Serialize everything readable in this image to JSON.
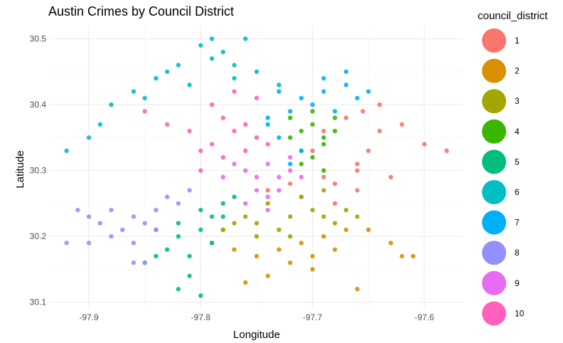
{
  "chart_data": {
    "type": "scatter",
    "title": "Austin Crimes by Council District",
    "xlabel": "Longitude",
    "ylabel": "Latitude",
    "xlim": [
      -97.935,
      -97.565
    ],
    "ylim": [
      30.09,
      30.52
    ],
    "x_ticks": [
      -97.9,
      -97.8,
      -97.7,
      -97.6
    ],
    "x_tick_labels": [
      "-97.9",
      "-97.8",
      "-97.7",
      "-97.6"
    ],
    "y_ticks": [
      30.1,
      30.2,
      30.3,
      30.4,
      30.5
    ],
    "y_tick_labels": [
      "30.1",
      "30.2",
      "30.3",
      "30.4",
      "30.5"
    ],
    "grid": true,
    "legend": {
      "title": "council_district",
      "position": "right",
      "entries": [
        {
          "label": "1",
          "color": "#F8766D"
        },
        {
          "label": "2",
          "color": "#D89000"
        },
        {
          "label": "3",
          "color": "#A3A500"
        },
        {
          "label": "4",
          "color": "#39B600"
        },
        {
          "label": "5",
          "color": "#00BF7D"
        },
        {
          "label": "6",
          "color": "#00BFC4"
        },
        {
          "label": "7",
          "color": "#00B0F6"
        },
        {
          "label": "8",
          "color": "#9590FF"
        },
        {
          "label": "9",
          "color": "#E76BF3"
        },
        {
          "label": "10",
          "color": "#FF62BC"
        }
      ]
    },
    "series": [
      {
        "district": "1",
        "color": "#F8766D",
        "x": [
          -97.69,
          -97.67,
          -97.65,
          -97.66,
          -97.7,
          -97.68,
          -97.64,
          -97.62,
          -97.6,
          -97.58,
          -97.63,
          -97.66,
          -97.69,
          -97.72,
          -97.74,
          -97.71,
          -97.68,
          -97.66,
          -97.64,
          -97.655
        ],
        "y": [
          30.36,
          30.38,
          30.33,
          30.3,
          30.33,
          30.28,
          30.36,
          30.37,
          30.34,
          30.33,
          30.29,
          30.27,
          30.29,
          30.28,
          30.27,
          30.26,
          30.25,
          30.31,
          30.4,
          30.39
        ]
      },
      {
        "district": "2",
        "color": "#D89000",
        "x": [
          -97.79,
          -97.77,
          -97.75,
          -97.73,
          -97.72,
          -97.7,
          -97.68,
          -97.67,
          -97.65,
          -97.63,
          -97.62,
          -97.61,
          -97.74,
          -97.76,
          -97.7,
          -97.71,
          -97.69,
          -97.78,
          -97.66
        ],
        "y": [
          30.19,
          30.18,
          30.17,
          30.18,
          30.16,
          30.17,
          30.18,
          30.21,
          30.21,
          30.19,
          30.17,
          30.17,
          30.14,
          30.13,
          30.15,
          30.19,
          30.2,
          30.21,
          30.12
        ]
      },
      {
        "district": "3",
        "color": "#A3A500",
        "x": [
          -97.77,
          -97.76,
          -97.75,
          -97.73,
          -97.72,
          -97.7,
          -97.69,
          -97.68,
          -97.67,
          -97.74,
          -97.71,
          -97.66,
          -97.72,
          -97.69,
          -97.75,
          -97.78
        ],
        "y": [
          30.22,
          30.23,
          30.2,
          30.21,
          30.23,
          30.24,
          30.23,
          30.22,
          30.24,
          30.25,
          30.26,
          30.23,
          30.2,
          30.27,
          30.22,
          30.21
        ]
      },
      {
        "district": "4",
        "color": "#39B600",
        "x": [
          -97.72,
          -97.71,
          -97.7,
          -97.69,
          -97.68,
          -97.71,
          -97.7,
          -97.69,
          -97.72,
          -97.7,
          -97.68,
          -97.71,
          -97.69
        ],
        "y": [
          30.38,
          30.36,
          30.37,
          30.35,
          30.36,
          30.33,
          30.32,
          30.34,
          30.35,
          30.39,
          30.38,
          30.31,
          30.3
        ]
      },
      {
        "district": "5",
        "color": "#00BF7D",
        "x": [
          -97.84,
          -97.82,
          -97.8,
          -97.79,
          -97.78,
          -97.83,
          -97.81,
          -97.79,
          -97.82,
          -97.8,
          -97.84,
          -97.85,
          -97.81,
          -97.77,
          -97.78,
          -97.82,
          -97.8
        ],
        "y": [
          30.21,
          30.2,
          30.21,
          30.23,
          30.25,
          30.18,
          30.17,
          30.19,
          30.22,
          30.24,
          30.17,
          30.16,
          30.14,
          30.26,
          30.23,
          30.12,
          30.11
        ]
      },
      {
        "district": "6",
        "color": "#00BFC4",
        "x": [
          -97.8,
          -97.79,
          -97.78,
          -97.77,
          -97.76,
          -97.82,
          -97.83,
          -97.84,
          -97.86,
          -97.88,
          -97.89,
          -97.85,
          -97.81,
          -97.77,
          -97.75,
          -97.73,
          -97.79,
          -97.9,
          -97.92
        ],
        "y": [
          30.49,
          30.47,
          30.48,
          30.46,
          30.5,
          30.46,
          30.45,
          30.44,
          30.42,
          30.4,
          30.37,
          30.41,
          30.43,
          30.44,
          30.45,
          30.43,
          30.5,
          30.35,
          30.33
        ]
      },
      {
        "district": "7",
        "color": "#00B0F6",
        "x": [
          -97.73,
          -97.71,
          -97.69,
          -97.67,
          -97.66,
          -97.72,
          -97.7,
          -97.68,
          -97.74,
          -97.73,
          -97.71,
          -97.69,
          -97.67,
          -97.65,
          -97.72,
          -97.74
        ],
        "y": [
          30.42,
          30.41,
          30.42,
          30.43,
          30.41,
          30.39,
          30.4,
          30.39,
          30.37,
          30.35,
          30.33,
          30.44,
          30.45,
          30.42,
          30.31,
          30.38
        ]
      },
      {
        "district": "8",
        "color": "#9590FF",
        "x": [
          -97.91,
          -97.9,
          -97.89,
          -97.88,
          -97.87,
          -97.86,
          -97.85,
          -97.84,
          -97.83,
          -97.81,
          -97.9,
          -97.92,
          -97.88,
          -97.86,
          -97.84,
          -97.82,
          -97.86,
          -97.85
        ],
        "y": [
          30.24,
          30.23,
          30.22,
          30.24,
          30.21,
          30.23,
          30.22,
          30.24,
          30.26,
          30.27,
          30.19,
          30.19,
          30.2,
          30.19,
          30.21,
          30.25,
          30.16,
          30.16
        ]
      },
      {
        "district": "9",
        "color": "#E76BF3",
        "x": [
          -97.76,
          -97.75,
          -97.74,
          -97.73,
          -97.72,
          -97.71,
          -97.75,
          -97.74,
          -97.73,
          -97.77,
          -97.78,
          -97.72,
          -97.76,
          -97.74
        ],
        "y": [
          30.3,
          30.29,
          30.31,
          30.29,
          30.3,
          30.29,
          30.27,
          30.26,
          30.27,
          30.31,
          30.29,
          30.32,
          30.25,
          30.24
        ]
      },
      {
        "district": "10",
        "color": "#FF62BC",
        "x": [
          -97.78,
          -97.77,
          -97.76,
          -97.75,
          -97.79,
          -97.8,
          -97.78,
          -97.76,
          -97.74,
          -97.81,
          -97.83,
          -97.85,
          -97.79,
          -97.77,
          -97.75,
          -97.8
        ],
        "y": [
          30.38,
          30.36,
          30.37,
          30.35,
          30.34,
          30.33,
          30.32,
          30.33,
          30.34,
          30.36,
          30.37,
          30.39,
          30.4,
          30.42,
          30.41,
          30.3
        ]
      }
    ]
  }
}
